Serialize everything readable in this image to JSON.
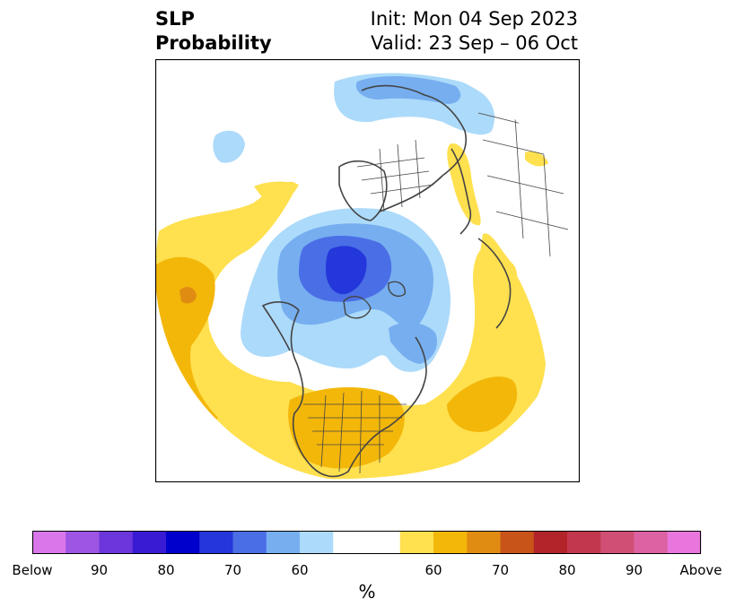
{
  "title": {
    "left_line1": "SLP",
    "left_line2": "Probability",
    "right_line1": "Init: Mon 04 Sep 2023",
    "right_line2": "Valid: 23 Sep – 06 Oct"
  },
  "colorbar": {
    "unit": "%",
    "colors": [
      "#d876ea",
      "#9e55e3",
      "#6b36db",
      "#3a1bd4",
      "#0000cd",
      "#2437da",
      "#4a6ee6",
      "#76aef0",
      "#acdafa",
      "#ffffff",
      "#ffffff",
      "#ffe04f",
      "#f3b70a",
      "#e08c12",
      "#c95419",
      "#b3232a",
      "#c3374e",
      "#d05075",
      "#dc62a3",
      "#e876dc"
    ],
    "labels": [
      {
        "text": "Below",
        "boundary": 0
      },
      {
        "text": "90",
        "boundary": 2
      },
      {
        "text": "80",
        "boundary": 4
      },
      {
        "text": "70",
        "boundary": 6
      },
      {
        "text": "60",
        "boundary": 8
      },
      {
        "text": "60",
        "boundary": 12
      },
      {
        "text": "70",
        "boundary": 14
      },
      {
        "text": "80",
        "boundary": 16
      },
      {
        "text": "90",
        "boundary": 18
      },
      {
        "text": "Above",
        "boundary": 20
      }
    ]
  },
  "map": {
    "projection": "north-polar-stereographic",
    "fields": {
      "below_light": "#acdafa",
      "below_mid": "#76aef0",
      "below_dark": "#4a6ee6",
      "below_darker": "#2437da",
      "above_light": "#ffe04f",
      "above_mid": "#f3b70a",
      "above_dark": "#e08c12"
    },
    "coast_color": "#444444"
  }
}
